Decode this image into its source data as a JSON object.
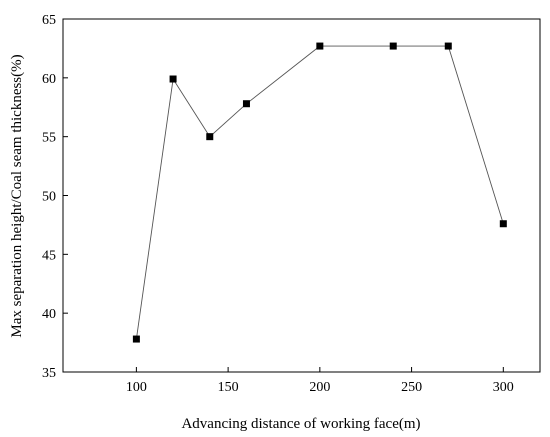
{
  "chart_data": {
    "type": "line",
    "xlabel": "Advancing distance of working face(m)",
    "ylabel": "Max separation height/Coal seam thickness(%)",
    "xlim": [
      60,
      320
    ],
    "ylim": [
      35,
      65
    ],
    "xticks": [
      100,
      150,
      200,
      250,
      300
    ],
    "yticks": [
      35,
      40,
      45,
      50,
      55,
      60,
      65
    ],
    "grid": false,
    "series": [
      {
        "x": [
          100,
          120,
          140,
          160,
          200,
          240,
          270,
          300
        ],
        "y": [
          37.8,
          59.9,
          55.0,
          57.8,
          62.7,
          62.7,
          62.7,
          47.6
        ],
        "marker": "square",
        "color": "#000000",
        "line_color": "#555555"
      }
    ]
  }
}
